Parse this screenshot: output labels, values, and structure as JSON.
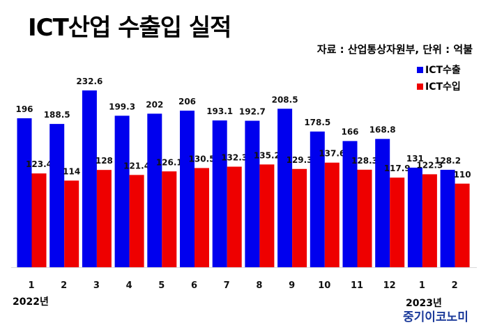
{
  "title": "ICT산업 수출입 실적",
  "source_note": "자료 : 산업통상자원부, 단위 : 억불",
  "year_left": "2022년",
  "year_right": "2023년",
  "brand": "중기이코노미",
  "colors": {
    "export": "#0000ee",
    "import": "#ee0000"
  },
  "chart_data": {
    "type": "bar",
    "categories": [
      "1",
      "2",
      "3",
      "4",
      "5",
      "6",
      "7",
      "8",
      "9",
      "10",
      "11",
      "12",
      "1",
      "2"
    ],
    "series": [
      {
        "name": "ICT수출",
        "values": [
          196,
          188.5,
          232.6,
          199.3,
          202,
          206,
          193.1,
          192.7,
          208.5,
          178.5,
          166,
          168.8,
          131,
          128.2
        ],
        "labels": [
          "196",
          "188.5",
          "232.6",
          "199.3",
          "202",
          "206",
          "193.1",
          "192.7",
          "208.5",
          "178.5",
          "166",
          "168.8",
          "131",
          "128.2"
        ]
      },
      {
        "name": "ICT수입",
        "values": [
          123.4,
          114,
          128,
          121.4,
          126.1,
          130.5,
          132.3,
          135.2,
          129.3,
          137.6,
          128.3,
          117.9,
          122.3,
          110
        ],
        "labels": [
          "123.4",
          "114",
          "128",
          "121.4",
          "126.1",
          "130.5",
          "132.3",
          "135.2",
          "129.3",
          "137.6",
          "128.3",
          "117.9",
          "122.3",
          "110"
        ]
      }
    ],
    "ylim": [
      0,
      260
    ],
    "grid": false,
    "legend": "top-right"
  }
}
